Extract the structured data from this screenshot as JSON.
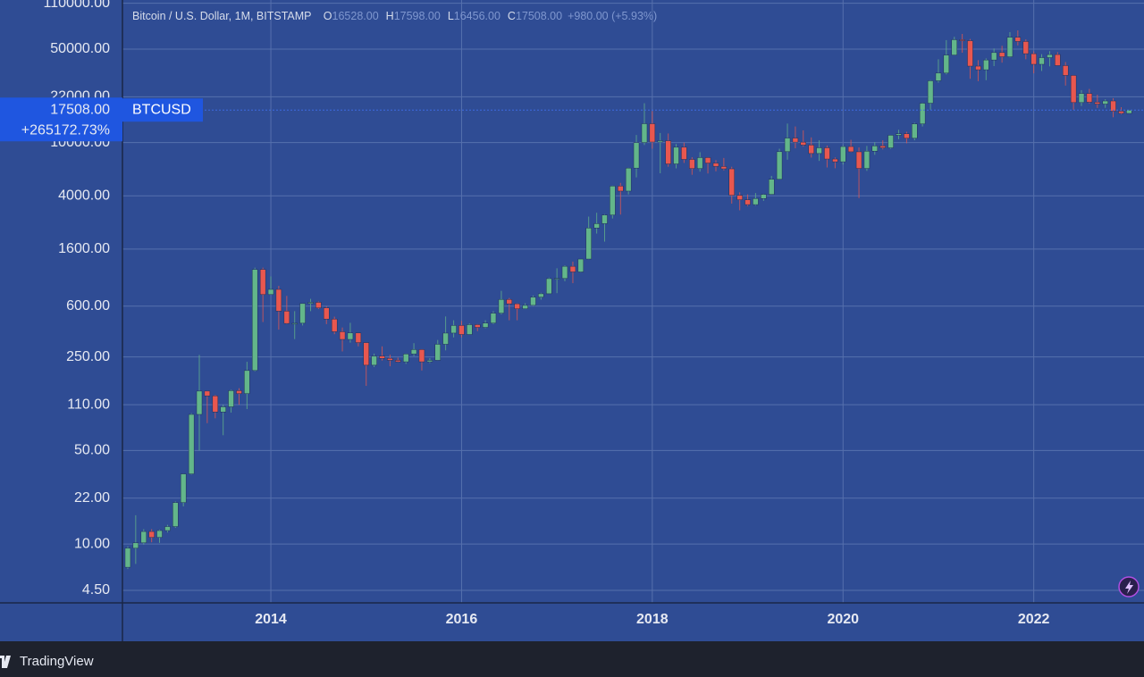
{
  "chart_data": {
    "type": "candlestick",
    "title": "Bitcoin / U.S. Dollar, 1M, BITSTAMP",
    "ohlc_legend": [
      {
        "key": "O",
        "value": "16528.00"
      },
      {
        "key": "H",
        "value": "17598.00"
      },
      {
        "key": "L",
        "value": "16456.00"
      },
      {
        "key": "C",
        "value": "17508.00"
      }
    ],
    "change_text": "+980.00 (+5.93%)",
    "symbol": "BTCUSD",
    "last_price_label": "17508.00",
    "last_change_label": "+265172.73%",
    "brand": "TradingView",
    "up_color": "#63b68a",
    "down_color": "#e8574f",
    "log": true,
    "grid": true,
    "xlim": [
      2012.444,
      2023.156
    ],
    "xticks": [
      2014,
      2016,
      2018,
      2020,
      2022
    ],
    "ylim": [
      3.63,
      116400
    ],
    "yticks": [
      {
        "value": 4.5,
        "label": "4.50"
      },
      {
        "value": 10,
        "label": "10.00"
      },
      {
        "value": 22,
        "label": "22.00"
      },
      {
        "value": 50,
        "label": "50.00"
      },
      {
        "value": 110,
        "label": "110.00"
      },
      {
        "value": 250,
        "label": "250.00"
      },
      {
        "value": 600,
        "label": "600.00"
      },
      {
        "value": 1600,
        "label": "1600.00"
      },
      {
        "value": 4000,
        "label": "4000.00"
      },
      {
        "value": 10000,
        "label": "10000.00"
      },
      {
        "value": 22000,
        "label": "22000.00"
      },
      {
        "value": 50000,
        "label": "50000.00"
      },
      {
        "value": 110000,
        "label": "110000.00"
      }
    ],
    "x": [
      2012.5,
      2012.583,
      2012.667,
      2012.75,
      2012.833,
      2012.917,
      2013,
      2013.083,
      2013.167,
      2013.25,
      2013.333,
      2013.417,
      2013.5,
      2013.583,
      2013.667,
      2013.75,
      2013.833,
      2013.917,
      2014,
      2014.083,
      2014.167,
      2014.25,
      2014.333,
      2014.417,
      2014.5,
      2014.583,
      2014.667,
      2014.75,
      2014.833,
      2014.917,
      2015,
      2015.083,
      2015.167,
      2015.25,
      2015.333,
      2015.417,
      2015.5,
      2015.583,
      2015.667,
      2015.75,
      2015.833,
      2015.917,
      2016,
      2016.083,
      2016.167,
      2016.25,
      2016.333,
      2016.417,
      2016.5,
      2016.583,
      2016.667,
      2016.75,
      2016.833,
      2016.917,
      2017,
      2017.083,
      2017.167,
      2017.25,
      2017.333,
      2017.417,
      2017.5,
      2017.583,
      2017.667,
      2017.75,
      2017.833,
      2017.917,
      2018,
      2018.083,
      2018.167,
      2018.25,
      2018.333,
      2018.417,
      2018.5,
      2018.583,
      2018.667,
      2018.75,
      2018.833,
      2018.917,
      2019,
      2019.083,
      2019.167,
      2019.25,
      2019.333,
      2019.417,
      2019.5,
      2019.583,
      2019.667,
      2019.75,
      2019.833,
      2019.917,
      2020,
      2020.083,
      2020.167,
      2020.25,
      2020.333,
      2020.417,
      2020.5,
      2020.583,
      2020.667,
      2020.75,
      2020.833,
      2020.917,
      2021,
      2021.083,
      2021.167,
      2021.25,
      2021.333,
      2021.417,
      2021.5,
      2021.583,
      2021.667,
      2021.75,
      2021.833,
      2021.917,
      2022,
      2022.083,
      2022.167,
      2022.25,
      2022.333,
      2022.417,
      2022.5,
      2022.583,
      2022.667,
      2022.75,
      2022.833,
      2022.917,
      2023
    ],
    "open": [
      6.7,
      9.3,
      10.2,
      12.4,
      11.2,
      12.6,
      13.5,
      20.4,
      33.4,
      93,
      139,
      128,
      97,
      106,
      140,
      133,
      198,
      1128,
      732,
      800,
      550,
      445,
      447,
      627,
      640,
      582,
      480,
      386,
      338,
      378,
      320,
      217,
      254,
      244,
      236,
      230,
      263,
      284,
      230,
      236,
      311,
      377,
      430,
      368,
      436,
      416,
      448,
      531,
      673,
      624,
      573,
      608,
      700,
      742,
      963,
      965,
      1190,
      1080,
      1348,
      2300,
      2480,
      2875,
      4735,
      4340,
      6450,
      10000,
      13850,
      10100,
      10330,
      6930,
      9240,
      7490,
      6400,
      7730,
      7030,
      6630,
      6370,
      4040,
      3740,
      3440,
      3820,
      4100,
      5320,
      8560,
      10820,
      10080,
      9590,
      8290,
      9150,
      7540,
      7190,
      9350,
      8540,
      6410,
      8630,
      9450,
      9140,
      11350,
      11650,
      10780,
      13800,
      19700,
      28990,
      33110,
      45140,
      58800,
      57750,
      37300,
      35040,
      41460,
      47130,
      43820,
      61300,
      57000,
      46200,
      38480,
      43180,
      45530,
      37640,
      31790,
      19930,
      23300,
      20050,
      19420,
      20490,
      17170,
      16528
    ],
    "high": [
      9.6,
      16.4,
      12.9,
      12.9,
      12.8,
      13.9,
      20.8,
      33.5,
      95,
      259,
      140,
      130,
      110,
      142,
      146,
      230,
      1163,
      1163,
      1000,
      850,
      715,
      550,
      630,
      680,
      650,
      600,
      500,
      415,
      450,
      380,
      320,
      265,
      300,
      260,
      247,
      265,
      317,
      286,
      245,
      335,
      502,
      470,
      465,
      445,
      440,
      470,
      550,
      780,
      690,
      630,
      630,
      720,
      755,
      980,
      1150,
      1210,
      1290,
      1350,
      2800,
      2990,
      2920,
      4770,
      5000,
      6490,
      11400,
      19700,
      17200,
      11800,
      11700,
      9760,
      10000,
      7780,
      8480,
      7770,
      7400,
      7680,
      6600,
      4250,
      4100,
      4200,
      4140,
      5640,
      9000,
      13880,
      13200,
      12350,
      10940,
      10400,
      9510,
      7750,
      9580,
      10500,
      9200,
      9450,
      10080,
      10400,
      11400,
      12470,
      12050,
      14100,
      19900,
      29300,
      41950,
      58350,
      61790,
      64900,
      59500,
      41330,
      42600,
      50500,
      52950,
      67000,
      69000,
      59100,
      47990,
      45800,
      48240,
      47450,
      40020,
      31990,
      24660,
      25200,
      22800,
      21100,
      21480,
      18390,
      17598
    ],
    "low": [
      6.5,
      7.1,
      9.9,
      10.3,
      10.2,
      12.2,
      13.2,
      19.1,
      33,
      50,
      80,
      87,
      65,
      96,
      110,
      102,
      195,
      456,
      730,
      400,
      440,
      340,
      430,
      550,
      570,
      440,
      370,
      275,
      320,
      300,
      152,
      210,
      235,
      213,
      228,
      222,
      254,
      198,
      225,
      235,
      280,
      350,
      350,
      368,
      390,
      410,
      440,
      520,
      470,
      470,
      570,
      600,
      670,
      740,
      750,
      920,
      890,
      1070,
      1340,
      2090,
      1820,
      2710,
      2900,
      4100,
      5500,
      9600,
      9000,
      5900,
      6600,
      6420,
      7050,
      5750,
      6070,
      5880,
      6100,
      6200,
      3500,
      3120,
      3350,
      3380,
      3670,
      4080,
      5300,
      7450,
      9070,
      9340,
      7730,
      7300,
      6520,
      6430,
      6860,
      8450,
      3850,
      6150,
      8110,
      8900,
      8990,
      10600,
      9880,
      10400,
      13200,
      17600,
      28100,
      32370,
      44950,
      47000,
      30000,
      28800,
      29280,
      37330,
      39600,
      43300,
      53250,
      42000,
      32950,
      34320,
      37150,
      37570,
      26700,
      17600,
      18780,
      19540,
      18150,
      18200,
      15480,
      16260,
      16456
    ],
    "close": [
      9.3,
      10.2,
      12.4,
      11.2,
      12.6,
      13.5,
      20.4,
      33.4,
      93,
      139,
      128,
      97,
      106,
      140,
      133,
      198,
      1128,
      732,
      800,
      550,
      445,
      447,
      627,
      640,
      582,
      480,
      386,
      338,
      378,
      320,
      217,
      254,
      244,
      236,
      230,
      263,
      284,
      230,
      236,
      311,
      377,
      430,
      368,
      436,
      416,
      448,
      531,
      673,
      624,
      573,
      608,
      700,
      742,
      963,
      965,
      1190,
      1080,
      1348,
      2300,
      2480,
      2875,
      4735,
      4340,
      6450,
      10000,
      13850,
      10100,
      10330,
      6930,
      9240,
      7490,
      6400,
      7730,
      7030,
      6630,
      6370,
      4040,
      3740,
      3440,
      3820,
      4100,
      5320,
      8560,
      10820,
      10080,
      9590,
      8290,
      9150,
      7540,
      7190,
      9350,
      8540,
      6410,
      8630,
      9450,
      9140,
      11350,
      11650,
      10780,
      13800,
      19700,
      28990,
      33110,
      45140,
      58800,
      57750,
      37300,
      35040,
      41460,
      47130,
      43820,
      61300,
      57000,
      46200,
      38480,
      43180,
      45530,
      37640,
      31790,
      19930,
      23300,
      20050,
      19420,
      20490,
      17170,
      16540,
      17508
    ]
  }
}
